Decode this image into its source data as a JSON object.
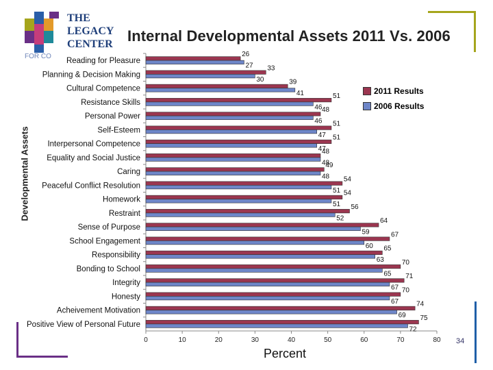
{
  "slide": {
    "logo_line1": "THE",
    "logo_line2": "LEGACY",
    "logo_line3": "CENTER",
    "logo_line4": "FOR CO",
    "page_number": "34"
  },
  "colors": {
    "series_2011": "#9b3650",
    "series_2006": "#6e86c8",
    "frame_olive": "#a5a51c",
    "frame_purple": "#6a2f86",
    "frame_blue": "#1f5fa8"
  },
  "chart_data": {
    "type": "bar",
    "orientation": "horizontal",
    "title": "Internal Developmental Assets 2011 Vs. 2006",
    "xlabel": "Percent",
    "ylabel": "Developmental Assets",
    "xlim": [
      0,
      80
    ],
    "xticks": [
      "0",
      "10",
      "20",
      "30",
      "40",
      "50",
      "60",
      "70",
      "80"
    ],
    "categories": [
      "Reading for Pleasure",
      "Planning & Decision Making",
      "Cultural Competence",
      "Resistance Skills",
      "Personal Power",
      "Self-Esteem",
      "Interpersonal Competence",
      "Equality and Social Justice",
      "Caring",
      "Peaceful Conflict Resolution",
      "Homework",
      "Restraint",
      "Sense of Purpose",
      "School Engagement",
      "Responsibility",
      "Bonding to School",
      "Integrity",
      "Honesty",
      "Acheivement Motivation",
      "Positive View of Personal Future"
    ],
    "series": [
      {
        "name": "2011 Results",
        "values": [
          26,
          33,
          39,
          51,
          48,
          51,
          51,
          48,
          49,
          54,
          54,
          56,
          64,
          67,
          65,
          70,
          71,
          70,
          74,
          75
        ]
      },
      {
        "name": "2006 Results",
        "values": [
          27,
          30,
          41,
          46,
          46,
          47,
          47,
          48,
          48,
          51,
          51,
          52,
          59,
          60,
          63,
          65,
          67,
          67,
          69,
          72
        ]
      }
    ],
    "legend_position": "top-right"
  }
}
